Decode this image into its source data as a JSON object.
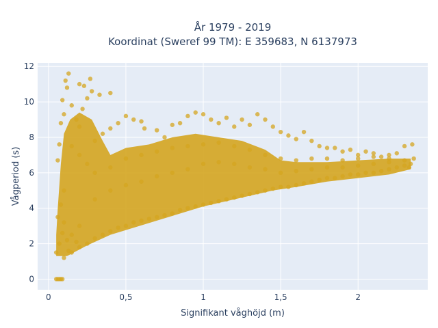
{
  "chart_data": {
    "type": "scatter",
    "title_lines": [
      "År 1979 - 2019",
      "Koordinat (Sweref 99 TM): E 359683, N 6137973"
    ],
    "xlabel": "Signifikant våghöjd (m)",
    "ylabel": "Vågperiod (s)",
    "xlim": [
      -0.07,
      2.45
    ],
    "ylim": [
      -0.6,
      12.2
    ],
    "x_ticks": [
      0,
      0.5,
      1,
      1.5,
      2
    ],
    "x_tick_labels": [
      "0",
      "0,5",
      "1",
      "1,5",
      "2"
    ],
    "y_ticks": [
      0,
      2,
      4,
      6,
      8,
      10,
      12
    ],
    "y_tick_labels": [
      "0",
      "2",
      "4",
      "6",
      "8",
      "10",
      "12"
    ],
    "grid": true,
    "legend": "none",
    "colors": {
      "marker": "#d4a520",
      "plot_bg": "#e5ecf6",
      "grid": "#ffffff",
      "text": "#2a3f5f"
    },
    "series": [
      {
        "points": [
          [
            0.05,
            0
          ],
          [
            0.06,
            0
          ],
          [
            0.07,
            0
          ],
          [
            0.08,
            0
          ],
          [
            0.09,
            0
          ],
          [
            0.05,
            1.5
          ],
          [
            0.07,
            2.0
          ],
          [
            0.09,
            2.6
          ],
          [
            0.1,
            3.2
          ],
          [
            0.12,
            2.2
          ],
          [
            0.1,
            1.2
          ],
          [
            0.13,
            1.6
          ],
          [
            0.15,
            2.5
          ],
          [
            0.18,
            2.1
          ],
          [
            0.2,
            3.0
          ],
          [
            0.06,
            3.5
          ],
          [
            0.08,
            4.2
          ],
          [
            0.1,
            5.0
          ],
          [
            0.06,
            6.7
          ],
          [
            0.07,
            7.6
          ],
          [
            0.08,
            8.8
          ],
          [
            0.1,
            9.3
          ],
          [
            0.09,
            10.1
          ],
          [
            0.11,
            11.2
          ],
          [
            0.13,
            11.6
          ],
          [
            0.12,
            10.8
          ],
          [
            0.15,
            9.8
          ],
          [
            0.18,
            9.0
          ],
          [
            0.2,
            8.6
          ],
          [
            0.22,
            9.6
          ],
          [
            0.25,
            10.2
          ],
          [
            0.2,
            11.0
          ],
          [
            0.23,
            10.9
          ],
          [
            0.27,
            11.3
          ],
          [
            0.28,
            10.6
          ],
          [
            0.33,
            10.4
          ],
          [
            0.4,
            10.5
          ],
          [
            0.15,
            7.5
          ],
          [
            0.2,
            7.0
          ],
          [
            0.25,
            6.5
          ],
          [
            0.3,
            7.8
          ],
          [
            0.35,
            8.2
          ],
          [
            0.4,
            8.5
          ],
          [
            0.45,
            8.8
          ],
          [
            0.5,
            9.2
          ],
          [
            0.55,
            9.0
          ],
          [
            0.6,
            8.9
          ],
          [
            0.62,
            8.5
          ],
          [
            0.7,
            8.4
          ],
          [
            0.75,
            8.0
          ],
          [
            0.8,
            8.7
          ],
          [
            0.85,
            8.8
          ],
          [
            0.9,
            9.2
          ],
          [
            0.95,
            9.4
          ],
          [
            1.0,
            9.3
          ],
          [
            1.05,
            9.0
          ],
          [
            1.1,
            8.8
          ],
          [
            1.15,
            9.1
          ],
          [
            1.2,
            8.6
          ],
          [
            1.25,
            9.0
          ],
          [
            1.3,
            8.7
          ],
          [
            1.35,
            9.3
          ],
          [
            1.4,
            9.0
          ],
          [
            1.45,
            8.6
          ],
          [
            1.5,
            8.3
          ],
          [
            1.55,
            8.1
          ],
          [
            1.6,
            7.9
          ],
          [
            1.65,
            8.3
          ],
          [
            1.7,
            7.8
          ],
          [
            1.75,
            7.5
          ],
          [
            1.8,
            7.4
          ],
          [
            1.85,
            7.4
          ],
          [
            1.9,
            7.2
          ],
          [
            1.95,
            7.3
          ],
          [
            2.0,
            7.0
          ],
          [
            2.05,
            7.2
          ],
          [
            2.1,
            7.1
          ],
          [
            2.15,
            6.9
          ],
          [
            2.2,
            7.0
          ],
          [
            2.25,
            7.1
          ],
          [
            2.3,
            7.5
          ],
          [
            2.35,
            7.6
          ],
          [
            2.36,
            6.8
          ],
          [
            2.33,
            6.3
          ],
          [
            0.15,
            1.5
          ],
          [
            0.2,
            1.8
          ],
          [
            0.25,
            2.0
          ],
          [
            0.3,
            2.3
          ],
          [
            0.35,
            2.5
          ],
          [
            0.4,
            2.7
          ],
          [
            0.45,
            2.9
          ],
          [
            0.5,
            3.0
          ],
          [
            0.55,
            3.2
          ],
          [
            0.6,
            3.3
          ],
          [
            0.65,
            3.4
          ],
          [
            0.7,
            3.5
          ],
          [
            0.75,
            3.6
          ],
          [
            0.8,
            3.7
          ],
          [
            0.85,
            3.9
          ],
          [
            0.9,
            4.0
          ],
          [
            0.95,
            4.1
          ],
          [
            1.0,
            4.2
          ],
          [
            1.05,
            4.3
          ],
          [
            1.1,
            4.4
          ],
          [
            1.15,
            4.5
          ],
          [
            1.2,
            4.6
          ],
          [
            1.25,
            4.7
          ],
          [
            1.3,
            4.8
          ],
          [
            1.35,
            4.9
          ],
          [
            1.4,
            5.0
          ],
          [
            1.45,
            5.1
          ],
          [
            1.5,
            5.2
          ],
          [
            1.55,
            5.2
          ],
          [
            1.6,
            5.3
          ],
          [
            1.65,
            5.4
          ],
          [
            1.7,
            5.5
          ],
          [
            1.75,
            5.6
          ],
          [
            1.8,
            5.7
          ],
          [
            1.85,
            5.7
          ],
          [
            1.9,
            5.8
          ],
          [
            1.95,
            5.9
          ],
          [
            2.0,
            5.9
          ],
          [
            2.05,
            6.0
          ],
          [
            2.1,
            6.0
          ],
          [
            2.15,
            6.1
          ],
          [
            2.2,
            6.2
          ],
          [
            2.25,
            6.3
          ],
          [
            2.3,
            6.4
          ],
          [
            2.34,
            6.5
          ],
          [
            0.3,
            4.5
          ],
          [
            0.4,
            5.0
          ],
          [
            0.5,
            5.3
          ],
          [
            0.6,
            5.5
          ],
          [
            0.7,
            5.8
          ],
          [
            0.8,
            6.0
          ],
          [
            0.9,
            6.2
          ],
          [
            1.0,
            6.5
          ],
          [
            1.1,
            6.6
          ],
          [
            1.2,
            6.5
          ],
          [
            1.3,
            6.3
          ],
          [
            1.4,
            6.2
          ],
          [
            1.5,
            6.0
          ],
          [
            1.6,
            6.1
          ],
          [
            1.7,
            6.2
          ],
          [
            1.8,
            6.3
          ],
          [
            1.9,
            6.3
          ],
          [
            2.0,
            6.4
          ],
          [
            2.1,
            6.5
          ],
          [
            2.2,
            6.6
          ],
          [
            2.3,
            6.7
          ],
          [
            0.3,
            6.0
          ],
          [
            0.4,
            6.3
          ],
          [
            0.5,
            6.8
          ],
          [
            0.6,
            7.0
          ],
          [
            0.7,
            7.2
          ],
          [
            0.8,
            7.4
          ],
          [
            0.9,
            7.5
          ],
          [
            1.0,
            7.6
          ],
          [
            1.1,
            7.7
          ],
          [
            1.2,
            7.5
          ],
          [
            1.3,
            7.3
          ],
          [
            1.4,
            7.0
          ],
          [
            1.5,
            6.8
          ],
          [
            1.6,
            6.7
          ],
          [
            1.7,
            6.8
          ],
          [
            1.8,
            6.8
          ],
          [
            1.9,
            6.7
          ],
          [
            2.0,
            6.8
          ],
          [
            2.1,
            6.9
          ],
          [
            2.2,
            6.8
          ]
        ]
      }
    ]
  }
}
